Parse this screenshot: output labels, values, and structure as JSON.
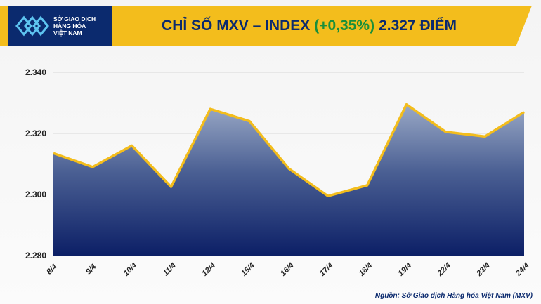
{
  "header": {
    "logo_lines": [
      "SỞ GIAO DỊCH",
      "HÀNG HÓA",
      "VIỆT NAM"
    ],
    "title_prefix": "CHỈ SỐ MXV – INDEX",
    "title_change": "(+0,35%)",
    "title_value": "2.327 ĐIỂM"
  },
  "source": "Nguồn: Sở Giao dịch Hàng hóa Việt Nam (MXV)",
  "colors": {
    "header": "#f3bd1c",
    "navy": "#0b2a6e",
    "change_green": "#1a8f3a",
    "line": "#f3bd1c"
  },
  "chart_data": {
    "type": "area",
    "categories": [
      "8/4",
      "9/4",
      "10/4",
      "11/4",
      "12/4",
      "15/4",
      "16/4",
      "17/4",
      "18/4",
      "19/4",
      "22/4",
      "23/4",
      "24/4"
    ],
    "values": [
      2313.5,
      2309,
      2316,
      2302.5,
      2328,
      2324,
      2308.5,
      2299.5,
      2303,
      2329.5,
      2320.5,
      2319,
      2327
    ],
    "ylim": [
      2280,
      2340
    ],
    "yticks": [
      2280,
      2300,
      2320,
      2340
    ],
    "ytick_labels": [
      "2.280",
      "2.300",
      "2.320",
      "2.340"
    ],
    "grid": true,
    "title": "CHỈ SỐ MXV – INDEX (+0,35%) 2.327 ĐIỂM"
  }
}
